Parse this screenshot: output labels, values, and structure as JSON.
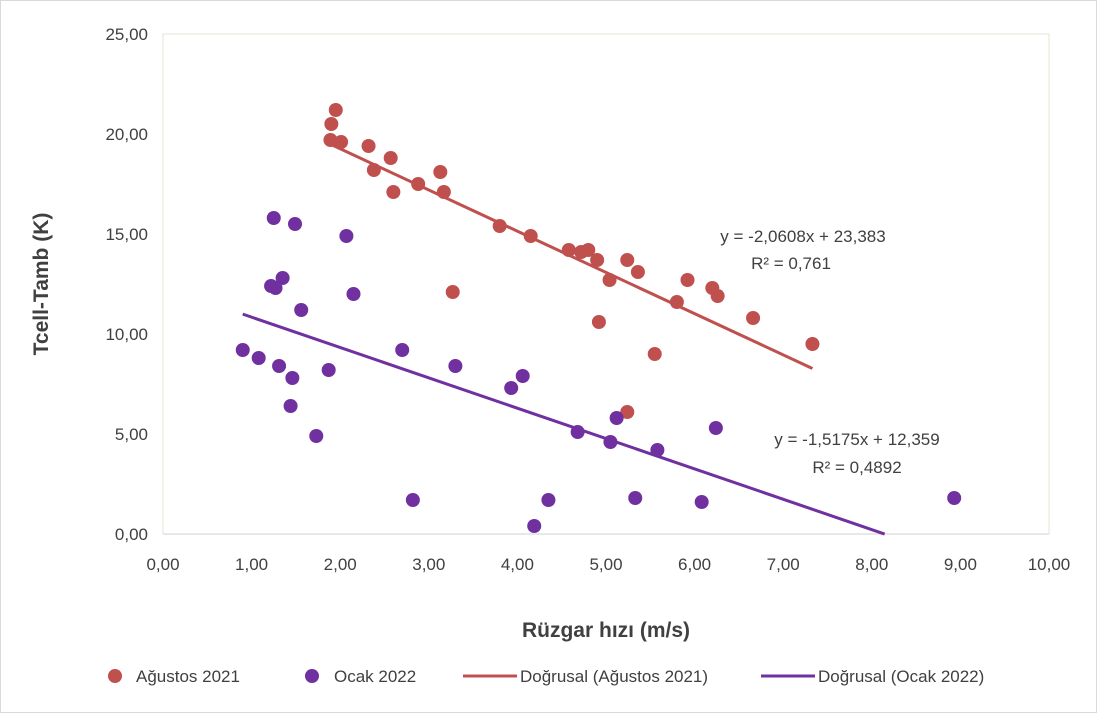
{
  "chart_data": {
    "type": "scatter",
    "title": "",
    "xlabel": "Rüzgar hızı (m/s)",
    "ylabel": "Tcell-Tamb (K)",
    "xlim": [
      0,
      10
    ],
    "ylim": [
      0,
      25
    ],
    "x_ticks": [
      "0,00",
      "1,00",
      "2,00",
      "3,00",
      "4,00",
      "5,00",
      "6,00",
      "7,00",
      "8,00",
      "9,00",
      "10,00"
    ],
    "y_ticks": [
      "0,00",
      "5,00",
      "10,00",
      "15,00",
      "20,00",
      "25,00"
    ],
    "grid": false,
    "legend_position": "bottom",
    "series": [
      {
        "name": "Ağustos 2021",
        "color": "#c0504d",
        "points": [
          [
            1.89,
            19.7
          ],
          [
            1.9,
            20.5
          ],
          [
            1.95,
            21.2
          ],
          [
            2.01,
            19.6
          ],
          [
            2.32,
            19.4
          ],
          [
            2.38,
            18.2
          ],
          [
            2.57,
            18.8
          ],
          [
            2.6,
            17.1
          ],
          [
            2.88,
            17.5
          ],
          [
            3.13,
            18.1
          ],
          [
            3.17,
            17.1
          ],
          [
            3.27,
            12.1
          ],
          [
            3.8,
            15.4
          ],
          [
            4.15,
            14.9
          ],
          [
            4.58,
            14.2
          ],
          [
            4.72,
            14.1
          ],
          [
            4.8,
            14.2
          ],
          [
            4.9,
            13.7
          ],
          [
            4.92,
            10.6
          ],
          [
            5.04,
            12.7
          ],
          [
            5.24,
            13.7
          ],
          [
            5.24,
            6.1
          ],
          [
            5.36,
            13.1
          ],
          [
            5.55,
            9.0
          ],
          [
            5.8,
            11.6
          ],
          [
            5.92,
            12.7
          ],
          [
            6.2,
            12.3
          ],
          [
            6.26,
            11.9
          ],
          [
            6.66,
            10.8
          ],
          [
            7.33,
            9.5
          ]
        ],
        "trendline": {
          "name": "Doğrusal (Ağustos 2021)",
          "slope": -2.0608,
          "intercept": 23.383,
          "x_range": [
            1.9,
            7.33
          ],
          "equation": "y = -2,0608x + 23,383",
          "r2_label": "R² = 0,761",
          "color": "#c0504d"
        }
      },
      {
        "name": "Ocak 2022",
        "color": "#7030a0",
        "points": [
          [
            0.9,
            9.2
          ],
          [
            1.08,
            8.8
          ],
          [
            1.22,
            12.4
          ],
          [
            1.25,
            15.8
          ],
          [
            1.27,
            12.3
          ],
          [
            1.31,
            8.4
          ],
          [
            1.35,
            12.8
          ],
          [
            1.44,
            6.4
          ],
          [
            1.46,
            7.8
          ],
          [
            1.49,
            15.5
          ],
          [
            1.56,
            11.2
          ],
          [
            1.73,
            4.9
          ],
          [
            1.87,
            8.2
          ],
          [
            2.07,
            14.9
          ],
          [
            2.15,
            12.0
          ],
          [
            2.7,
            9.2
          ],
          [
            2.82,
            1.7
          ],
          [
            3.3,
            8.4
          ],
          [
            3.93,
            7.3
          ],
          [
            4.06,
            7.9
          ],
          [
            4.19,
            0.4
          ],
          [
            4.35,
            1.7
          ],
          [
            4.68,
            5.1
          ],
          [
            5.05,
            4.6
          ],
          [
            5.12,
            5.8
          ],
          [
            5.33,
            1.8
          ],
          [
            5.58,
            4.2
          ],
          [
            6.08,
            1.6
          ],
          [
            6.24,
            5.3
          ],
          [
            8.93,
            1.8
          ]
        ],
        "trendline": {
          "name": "Doğrusal (Ocak 2022)",
          "slope": -1.5175,
          "intercept": 12.359,
          "x_range": [
            0.9,
            8.145
          ],
          "equation": "y = -1,5175x + 12,359",
          "r2_label": "R² = 0,4892",
          "color": "#7030a0"
        }
      }
    ]
  }
}
